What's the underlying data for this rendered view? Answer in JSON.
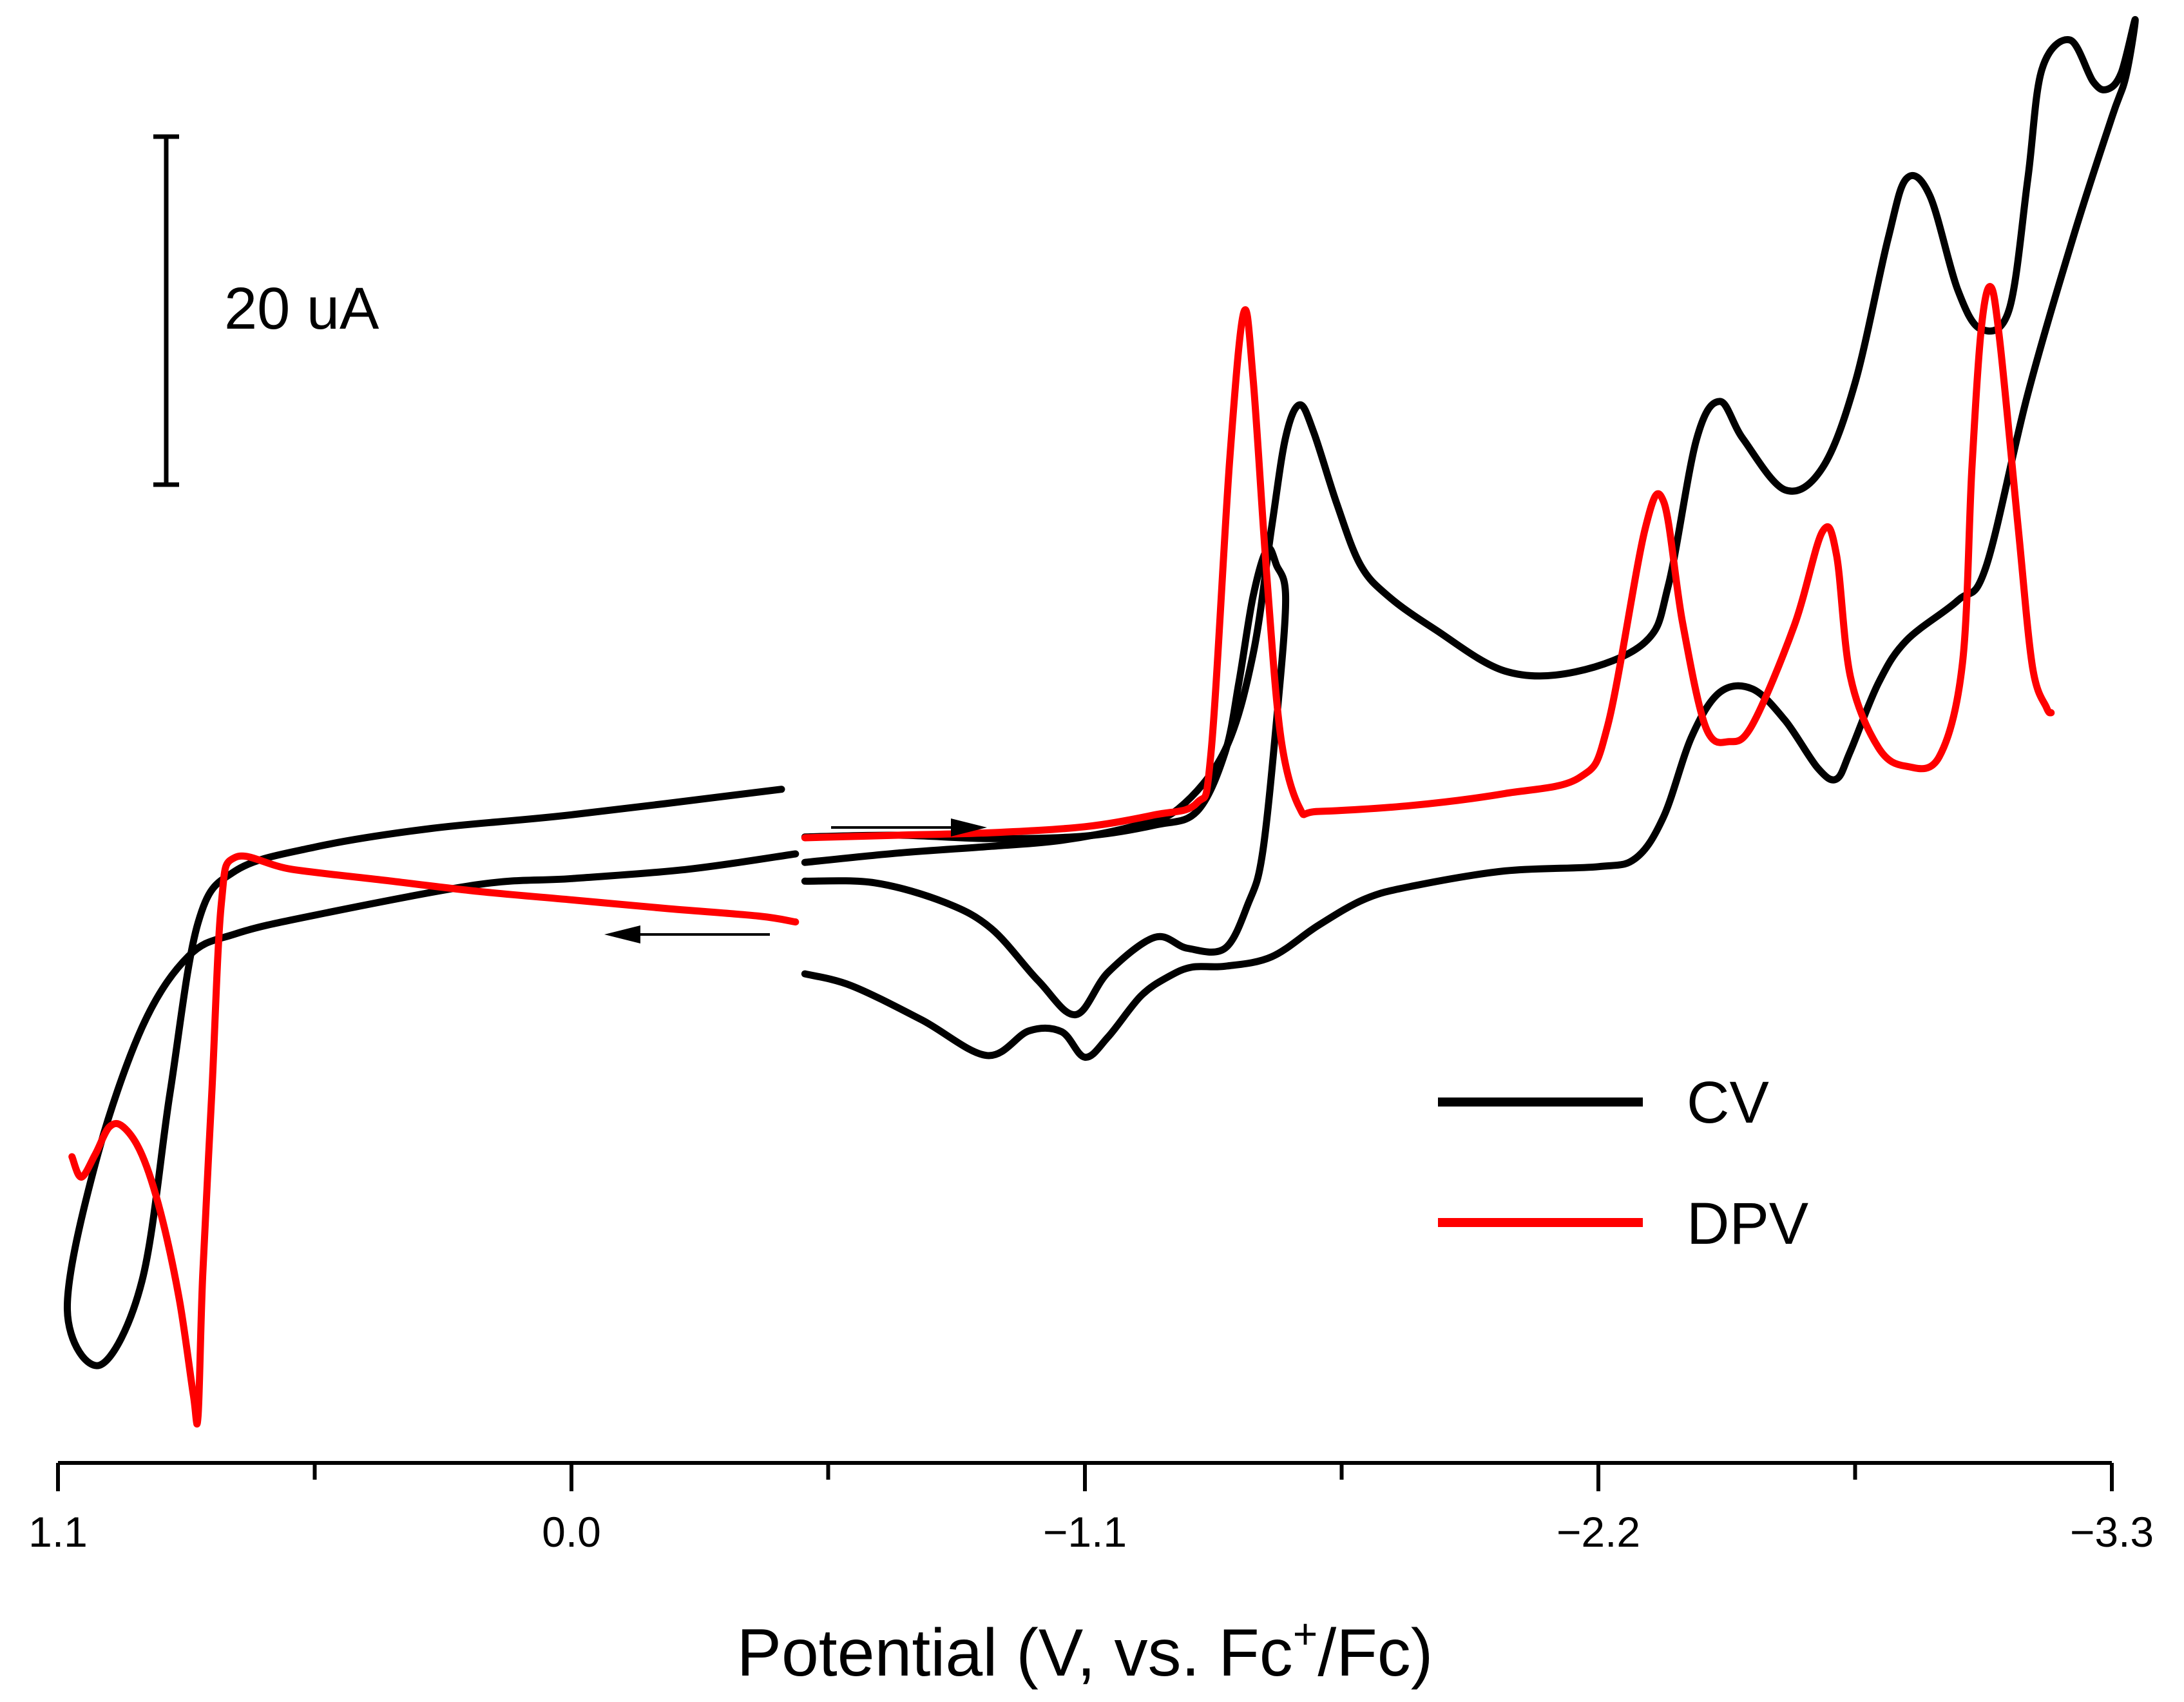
{
  "chart_data": {
    "type": "line",
    "title": "",
    "xlabel_main": "Potential (V, vs. Fc",
    "xlabel_sup": "+",
    "xlabel_tail": "/Fc)",
    "ylabel": "",
    "xlim": [
      1.1,
      -3.3
    ],
    "x_ticks": [
      "1.1",
      "0.0",
      "−1.1",
      "−2.2",
      "−3.3"
    ],
    "x_tick_values": [
      1.1,
      0.0,
      -1.1,
      -2.2,
      -3.3
    ],
    "x_minor_ticks": [
      0.55,
      -0.55,
      -1.65,
      -2.75
    ],
    "ylim": [
      -130,
      42
    ],
    "grid": false,
    "scale_bar": {
      "label": "20 uA",
      "value": 20,
      "y_from": 4,
      "y_to": 24
    },
    "legend": {
      "placement": "right",
      "entries": [
        {
          "name": "CV",
          "color": "#000000"
        },
        {
          "name": "DPV",
          "color": "#ff0000"
        }
      ]
    },
    "sweep_arrows": [
      {
        "direction": "forward",
        "x_from": -0.55,
        "x_to": -0.89,
        "y": -51.7
      },
      {
        "direction": "reverse",
        "x_from": -0.43,
        "x_to": -0.07,
        "y": -67.6
      }
    ],
    "series": [
      {
        "name": "CV-forward",
        "color": "#000000",
        "points": [
          [
            -0.5,
            -59.4
          ],
          [
            -0.7,
            -58.3
          ],
          [
            -0.9,
            -57.5
          ],
          [
            -1.05,
            -56.8
          ],
          [
            -1.2,
            -55.2
          ],
          [
            -1.3,
            -53.1
          ],
          [
            -1.4,
            -46.2
          ],
          [
            -1.46,
            -35.0
          ],
          [
            -1.5,
            -20.0
          ],
          [
            -1.53,
            -9.4
          ],
          [
            -1.56,
            -5.6
          ],
          [
            -1.59,
            -8.8
          ],
          [
            -1.64,
            -17.3
          ],
          [
            -1.69,
            -24.4
          ],
          [
            -1.75,
            -28.1
          ],
          [
            -1.85,
            -32.0
          ],
          [
            -2.0,
            -36.9
          ],
          [
            -2.15,
            -37.0
          ],
          [
            -2.3,
            -33.5
          ],
          [
            -2.35,
            -26.8
          ],
          [
            -2.41,
            -9.7
          ],
          [
            -2.46,
            -5.2
          ],
          [
            -2.51,
            -9.6
          ],
          [
            -2.6,
            -15.6
          ],
          [
            -2.68,
            -13.0
          ],
          [
            -2.75,
            -3.0
          ],
          [
            -2.82,
            13.8
          ],
          [
            -2.86,
            21.0
          ],
          [
            -2.91,
            19.0
          ],
          [
            -2.97,
            7.9
          ],
          [
            -3.02,
            3.3
          ],
          [
            -3.08,
            5.6
          ],
          [
            -3.12,
            21.0
          ],
          [
            -3.15,
            33.8
          ],
          [
            -3.21,
            37.3
          ],
          [
            -3.26,
            32.4
          ],
          [
            -3.29,
            31.5
          ],
          [
            -3.32,
            33.4
          ],
          [
            -3.35,
            39.7
          ],
          [
            -3.33,
            33.0
          ],
          [
            -3.3,
            28.2
          ],
          [
            -3.22,
            14.6
          ],
          [
            -3.12,
            -4.3
          ],
          [
            -3.03,
            -24.7
          ],
          [
            -2.97,
            -28.6
          ],
          [
            -2.86,
            -33.3
          ],
          [
            -2.8,
            -38.3
          ],
          [
            -2.74,
            -46.3
          ],
          [
            -2.71,
            -49.6
          ],
          [
            -2.67,
            -48.3
          ],
          [
            -2.6,
            -42.7
          ],
          [
            -2.53,
            -39.0
          ],
          [
            -2.46,
            -39.4
          ],
          [
            -2.4,
            -44.6
          ],
          [
            -2.34,
            -54.0
          ],
          [
            -2.28,
            -58.9
          ],
          [
            -2.2,
            -59.9
          ],
          [
            -2.0,
            -60.4
          ],
          [
            -1.8,
            -62.2
          ],
          [
            -1.7,
            -63.7
          ],
          [
            -1.6,
            -66.8
          ],
          [
            -1.5,
            -70.5
          ],
          [
            -1.4,
            -71.6
          ],
          [
            -1.33,
            -71.7
          ],
          [
            -1.28,
            -72.8
          ],
          [
            -1.22,
            -75.1
          ],
          [
            -1.15,
            -79.9
          ],
          [
            -1.1,
            -82.3
          ],
          [
            -1.05,
            -79.3
          ],
          [
            -0.98,
            -79.2
          ],
          [
            -0.89,
            -82.1
          ],
          [
            -0.75,
            -77.9
          ],
          [
            -0.6,
            -73.9
          ],
          [
            -0.5,
            -72.5
          ]
        ]
      },
      {
        "name": "CV-inner",
        "color": "#000000",
        "points": [
          [
            -0.5,
            -56.4
          ],
          [
            -0.7,
            -56.2
          ],
          [
            -0.9,
            -56.6
          ],
          [
            -1.1,
            -56.3
          ],
          [
            -1.25,
            -55.0
          ],
          [
            -1.34,
            -53.4
          ],
          [
            -1.4,
            -46.5
          ],
          [
            -1.43,
            -38.2
          ],
          [
            -1.46,
            -28.2
          ],
          [
            -1.49,
            -22.6
          ],
          [
            -1.51,
            -24.4
          ],
          [
            -1.53,
            -28.5
          ],
          [
            -1.51,
            -43.0
          ],
          [
            -1.48,
            -58.5
          ],
          [
            -1.45,
            -64.2
          ],
          [
            -1.4,
            -69.5
          ],
          [
            -1.32,
            -69.5
          ],
          [
            -1.25,
            -68.2
          ],
          [
            -1.15,
            -72.3
          ],
          [
            -1.08,
            -77.3
          ],
          [
            -1.0,
            -73.3
          ],
          [
            -0.9,
            -67.2
          ],
          [
            -0.8,
            -64.1
          ],
          [
            -0.65,
            -61.8
          ],
          [
            -0.5,
            -61.6
          ]
        ]
      },
      {
        "name": "CV-positive-loop",
        "color": "#000000",
        "points": [
          [
            -0.45,
            -50.8
          ],
          [
            0.0,
            -53.8
          ],
          [
            0.3,
            -55.4
          ],
          [
            0.55,
            -57.6
          ],
          [
            0.72,
            -60.4
          ],
          [
            0.8,
            -66.5
          ],
          [
            0.86,
            -86.5
          ],
          [
            0.92,
            -108.6
          ],
          [
            1.01,
            -118.5
          ],
          [
            1.08,
            -112.0
          ],
          [
            1.02,
            -94.8
          ],
          [
            0.92,
            -78.8
          ],
          [
            0.82,
            -70.4
          ],
          [
            0.72,
            -67.8
          ],
          [
            0.55,
            -65.6
          ],
          [
            0.2,
            -62.0
          ],
          [
            0.0,
            -61.3
          ],
          [
            -0.25,
            -60.2
          ],
          [
            -0.48,
            -58.4
          ]
        ]
      },
      {
        "name": "DPV",
        "color": "#ff0000",
        "points": [
          [
            -0.5,
            -56.5
          ],
          [
            -0.7,
            -56.2
          ],
          [
            -0.9,
            -55.9
          ],
          [
            -1.1,
            -55.2
          ],
          [
            -1.25,
            -53.8
          ],
          [
            -1.34,
            -52.4
          ],
          [
            -1.37,
            -46.6
          ],
          [
            -1.41,
            -12.2
          ],
          [
            -1.44,
            5.2
          ],
          [
            -1.46,
            -2.3
          ],
          [
            -1.49,
            -26.0
          ],
          [
            -1.52,
            -44.8
          ],
          [
            -1.56,
            -53.0
          ],
          [
            -1.6,
            -53.4
          ],
          [
            -1.8,
            -52.7
          ],
          [
            -2.0,
            -51.3
          ],
          [
            -2.16,
            -49.4
          ],
          [
            -2.22,
            -43.3
          ],
          [
            -2.3,
            -20.2
          ],
          [
            -2.34,
            -17.0
          ],
          [
            -2.38,
            -31.1
          ],
          [
            -2.43,
            -43.5
          ],
          [
            -2.48,
            -45.2
          ],
          [
            -2.53,
            -43.2
          ],
          [
            -2.62,
            -31.5
          ],
          [
            -2.68,
            -20.5
          ],
          [
            -2.71,
            -23.2
          ],
          [
            -2.74,
            -37.6
          ],
          [
            -2.8,
            -45.9
          ],
          [
            -2.86,
            -48.1
          ],
          [
            -2.93,
            -47.0
          ],
          [
            -2.98,
            -36.0
          ],
          [
            -3.0,
            -13.3
          ],
          [
            -3.02,
            3.2
          ],
          [
            -3.04,
            8.3
          ],
          [
            -3.06,
            1.9
          ],
          [
            -3.1,
            -20.4
          ],
          [
            -3.13,
            -36.4
          ],
          [
            -3.16,
            -41.2
          ],
          [
            -3.17,
            -41.8
          ]
        ]
      },
      {
        "name": "DPV-positive",
        "color": "#ff0000",
        "points": [
          [
            -0.48,
            -66.4
          ],
          [
            -0.4,
            -65.7
          ],
          [
            -0.2,
            -64.8
          ],
          [
            0.0,
            -63.8
          ],
          [
            0.2,
            -62.8
          ],
          [
            0.4,
            -61.5
          ],
          [
            0.6,
            -60.2
          ],
          [
            0.72,
            -58.8
          ],
          [
            0.75,
            -64.2
          ],
          [
            0.77,
            -86.0
          ],
          [
            0.79,
            -108.0
          ],
          [
            0.8,
            -124.5
          ],
          [
            0.81,
            -122.0
          ],
          [
            0.84,
            -110.8
          ],
          [
            0.88,
            -100.6
          ],
          [
            0.92,
            -93.8
          ],
          [
            0.96,
            -90.5
          ],
          [
            0.99,
            -90.5
          ],
          [
            1.02,
            -93.7
          ],
          [
            1.05,
            -96.4
          ],
          [
            1.07,
            -94.0
          ]
        ]
      }
    ]
  }
}
